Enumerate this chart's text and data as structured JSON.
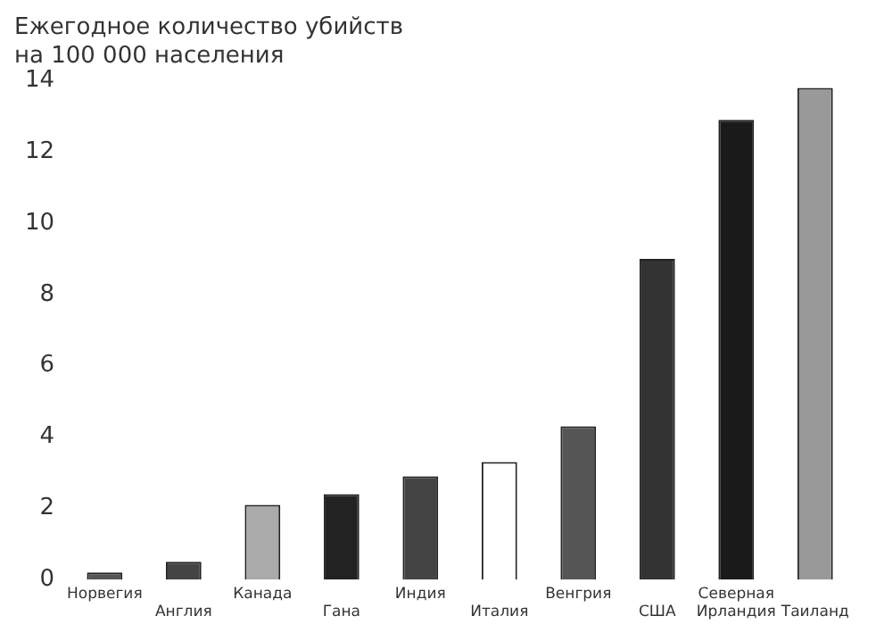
{
  "chart_data": {
    "type": "bar",
    "title": "Ежегодное количество убийств на 100 000 населения",
    "categories": [
      "Норвегия",
      "Англия",
      "Канада",
      "Гана",
      "Индия",
      "Италия",
      "Венгрия",
      "США",
      "Северная Ирландия",
      "Таиланд"
    ],
    "values": [
      0.2,
      0.5,
      2.1,
      2.4,
      2.9,
      3.3,
      4.3,
      9.0,
      12.9,
      13.8
    ],
    "colors": [
      "#555555",
      "#444444",
      "#aaaaaa",
      "#222222",
      "#444444",
      "#ffffff",
      "#555555",
      "#333333",
      "#1a1a1a",
      "#999999"
    ],
    "ylim": [
      0,
      14
    ],
    "yticks": [
      0,
      2,
      4,
      6,
      8,
      10,
      12,
      14
    ],
    "grid": false,
    "legend": false
  }
}
